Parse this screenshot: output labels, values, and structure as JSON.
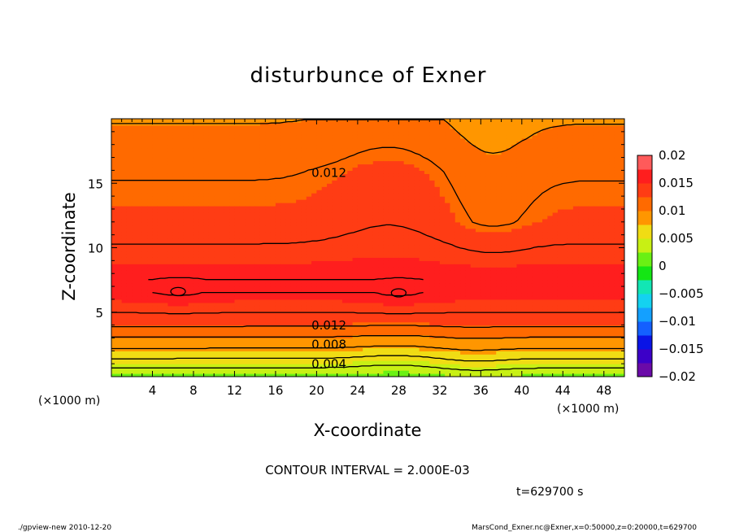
{
  "chart_data": {
    "type": "heatmap",
    "title": "disturbunce of Exner",
    "xlabel": "X-coordinate",
    "ylabel": "Z-coordinate",
    "x_unit": "(×1000 m)",
    "xlim": [
      0,
      50
    ],
    "ylim": [
      0,
      20
    ],
    "x_ticks": [
      4,
      8,
      12,
      16,
      20,
      24,
      28,
      32,
      36,
      40,
      44,
      48
    ],
    "y_ticks": [
      5,
      10,
      15
    ],
    "colorbar": {
      "min": -0.02,
      "max": 0.02,
      "step": 0.0025,
      "tick_labels": [
        "0.02",
        "0.015",
        "0.01",
        "0.005",
        "0",
        "−0.005",
        "−0.01",
        "−0.015",
        "−0.02"
      ]
    },
    "contour_interval": "CONTOUR INTERVAL = 2.000E-03",
    "contour_labels": [
      {
        "text": "0.012",
        "x": 19.5,
        "y": 15.6
      },
      {
        "text": "0.012",
        "x": 19.5,
        "y": 3.8
      },
      {
        "text": "0.008",
        "x": 19.5,
        "y": 2.3
      },
      {
        "text": "0.004",
        "x": 19.5,
        "y": 0.8
      }
    ],
    "field_profile_by_height": [
      {
        "z": 0.0,
        "value": 0.002
      },
      {
        "z": 1.0,
        "value": 0.005
      },
      {
        "z": 2.2,
        "value": 0.008
      },
      {
        "z": 3.5,
        "value": 0.011
      },
      {
        "z": 4.5,
        "value": 0.0135
      },
      {
        "z": 7.0,
        "value": 0.0162
      },
      {
        "z": 10.0,
        "value": 0.0142
      },
      {
        "z": 12.0,
        "value": 0.0128
      },
      {
        "z": 16.0,
        "value": 0.0118
      },
      {
        "z": 20.0,
        "value": 0.0098
      }
    ],
    "local_maxima": [
      {
        "x": 6.5,
        "z": 6.6
      },
      {
        "x": 28.0,
        "z": 6.5
      }
    ]
  },
  "footer": {
    "time": "t=629700 s",
    "left": "./gpview-new   2010-12-20",
    "right": "MarsCond_Exner.nc@Exner,x=0:50000,z=0:20000,t=629700"
  }
}
